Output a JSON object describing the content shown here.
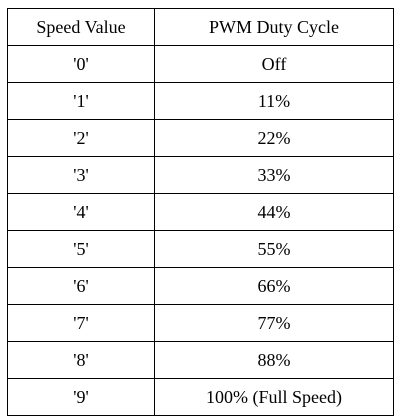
{
  "table": {
    "headers": [
      "Speed Value",
      "PWM Duty Cycle"
    ],
    "rows": [
      [
        "'0'",
        "Off"
      ],
      [
        "'1'",
        "11%"
      ],
      [
        "'2'",
        "22%"
      ],
      [
        "'3'",
        "33%"
      ],
      [
        "'4'",
        "44%"
      ],
      [
        "'5'",
        "55%"
      ],
      [
        "'6'",
        "66%"
      ],
      [
        "'7'",
        "77%"
      ],
      [
        "'8'",
        "88%"
      ],
      [
        "'9'",
        "100% (Full Speed)"
      ]
    ]
  }
}
